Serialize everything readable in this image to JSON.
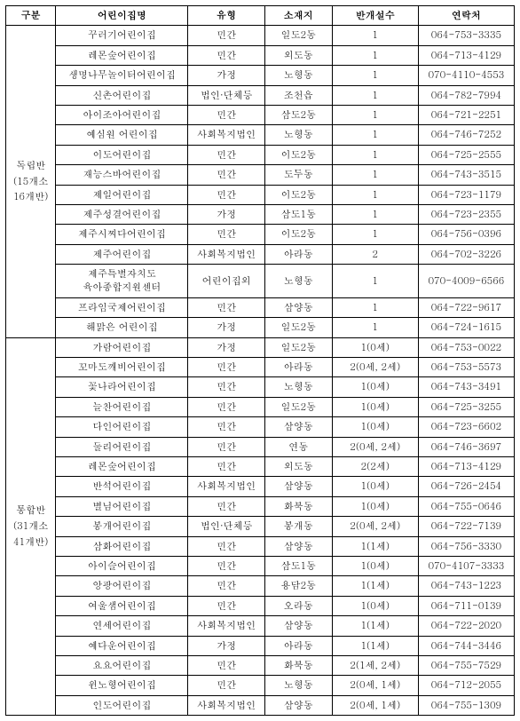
{
  "headers": {
    "group": "구분",
    "name": "어린이집명",
    "type": "유형",
    "location": "소재지",
    "classes": "반개설수",
    "phone": "연락처"
  },
  "groups": [
    {
      "label": "독립반\n(15개소\n16개반)",
      "rows": [
        {
          "name": "꾸러기어린이집",
          "type": "민간",
          "location": "일도2동",
          "classes": "1",
          "phone": "064-753-3335"
        },
        {
          "name": "레몬숲어린이집",
          "type": "민간",
          "location": "외도동",
          "classes": "1",
          "phone": "064-713-4129"
        },
        {
          "name": "생명나무놀이터어린이집",
          "type": "가정",
          "location": "노형동",
          "classes": "1",
          "phone": "070-4110-4553"
        },
        {
          "name": "신촌어린이집",
          "type": "법인·단체등",
          "location": "조천읍",
          "classes": "1",
          "phone": "064-782-7994"
        },
        {
          "name": "아이조아어린이집",
          "type": "민간",
          "location": "삼도2동",
          "classes": "1",
          "phone": "064-721-2251"
        },
        {
          "name": "예심원 어린이집",
          "type": "사회복지법인",
          "location": "노형동",
          "classes": "1",
          "phone": "064-746-7252"
        },
        {
          "name": "이도어린이집",
          "type": "민간",
          "location": "이도2동",
          "classes": "1",
          "phone": "064-725-2555"
        },
        {
          "name": "재능스바어린이집",
          "type": "민간",
          "location": "도두동",
          "classes": "1",
          "phone": "064-743-3515"
        },
        {
          "name": "제일어린이집",
          "type": "민간",
          "location": "이도2동",
          "classes": "1",
          "phone": "064-723-1179"
        },
        {
          "name": "제주성결어린이집",
          "type": "가정",
          "location": "삼도1동",
          "classes": "1",
          "phone": "064-723-2355"
        },
        {
          "name": "제주시찌다어린이집",
          "type": "민간",
          "location": "이도2동",
          "classes": "1",
          "phone": "064-756-0396"
        },
        {
          "name": "제주어린이집",
          "type": "사회복지법인",
          "location": "아라동",
          "classes": "2",
          "phone": "064-702-3226"
        },
        {
          "name": "제주특별자치도\n육아종합지원센터",
          "type": "어린이집외",
          "location": "노형동",
          "classes": "1",
          "phone": "070-4009-6566"
        },
        {
          "name": "프라임국제어린이집",
          "type": "민간",
          "location": "삼양동",
          "classes": "1",
          "phone": "064-722-9617"
        },
        {
          "name": "해맑은 어린이집",
          "type": "가정",
          "location": "일도2동",
          "classes": "1",
          "phone": "064-724-1615"
        }
      ]
    },
    {
      "label": "통합반\n(31개소\n41개반)",
      "rows": [
        {
          "name": "가람어린이집",
          "type": "가정",
          "location": "일도2동",
          "classes": "1(0세)",
          "phone": "064-753-0022"
        },
        {
          "name": "꼬마도깨비어린이집",
          "type": "민간",
          "location": "아라동",
          "classes": "2(0세, 2세)",
          "phone": "064-753-5573"
        },
        {
          "name": "꽃나라어린이집",
          "type": "민간",
          "location": "노형동",
          "classes": "1(0세)",
          "phone": "064-743-3491"
        },
        {
          "name": "늘찬어린이집",
          "type": "민간",
          "location": "일도2동",
          "classes": "1(0세)",
          "phone": "064-725-3255"
        },
        {
          "name": "다인어린이집",
          "type": "민간",
          "location": "삼양동",
          "classes": "1(0세)",
          "phone": "064-723-6602"
        },
        {
          "name": "둘리어린이집",
          "type": "민간",
          "location": "연동",
          "classes": "2(0세, 2세)",
          "phone": "064-746-3697"
        },
        {
          "name": "레몬숲어린이집",
          "type": "민간",
          "location": "외도동",
          "classes": "2(2세)",
          "phone": "064-713-4129"
        },
        {
          "name": "반석어린이집",
          "type": "사회복지법인",
          "location": "삼양동",
          "classes": "1(0세)",
          "phone": "064-726-2454"
        },
        {
          "name": "별님어린이집",
          "type": "민간",
          "location": "화북동",
          "classes": "1(0세)",
          "phone": "064-755-0646"
        },
        {
          "name": "봉개어린이집",
          "type": "법인·단체등",
          "location": "봉개동",
          "classes": "2(0세, 2세)",
          "phone": "064-722-7139"
        },
        {
          "name": "삼화어린이집",
          "type": "민간",
          "location": "삼양동",
          "classes": "1(1세)",
          "phone": "064-756-3330"
        },
        {
          "name": "아이슬어린이집",
          "type": "민간",
          "location": "삼도1동",
          "classes": "1(0세)",
          "phone": "070-4107-3333"
        },
        {
          "name": "앙팡어린이집",
          "type": "민간",
          "location": "용담2동",
          "classes": "1(1세)",
          "phone": "064-743-1223"
        },
        {
          "name": "여울샘어린이집",
          "type": "민간",
          "location": "오라동",
          "classes": "1(0세)",
          "phone": "064-711-0139"
        },
        {
          "name": "연세어린이집",
          "type": "사회복지법인",
          "location": "삼양동",
          "classes": "1(1세)",
          "phone": "064-722-2020"
        },
        {
          "name": "예다운어린이집",
          "type": "가정",
          "location": "아라동",
          "classes": "1(1세)",
          "phone": "064-744-3446"
        },
        {
          "name": "요요어린이집",
          "type": "민간",
          "location": "화북동",
          "classes": "2(1세, 2세)",
          "phone": "064-755-7529"
        },
        {
          "name": "윈노형어린이집",
          "type": "민간",
          "location": "노형동",
          "classes": "2(0세, 1세)",
          "phone": "064-712-2055"
        },
        {
          "name": "인도어린이집",
          "type": "사회복지법인",
          "location": "삼양동",
          "classes": "2(0세, 1세)",
          "phone": "064-755-1309"
        }
      ]
    }
  ]
}
